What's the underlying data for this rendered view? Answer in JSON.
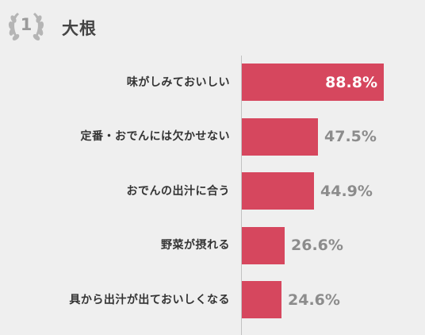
{
  "header": {
    "rank": "1",
    "title": "大根"
  },
  "colors": {
    "bar": "#d6475e",
    "value_inside": "#ffffff",
    "value_outside": "#8c8c8c",
    "badge": "#b5b5b5"
  },
  "chart_data": {
    "type": "bar",
    "orientation": "horizontal",
    "categories": [
      "味がしみておいしい",
      "定番・おでんには欠かせない",
      "おでんの出汁に合う",
      "野菜が摂れる",
      "具から出汁が出ておいしくなる"
    ],
    "values": [
      88.8,
      47.5,
      44.9,
      26.6,
      24.6
    ],
    "value_labels": [
      "88.8%",
      "47.5%",
      "44.9%",
      "26.6%",
      "24.6%"
    ],
    "unit": "%",
    "xlim": [
      0,
      100
    ],
    "grid": false,
    "legend": "none"
  }
}
